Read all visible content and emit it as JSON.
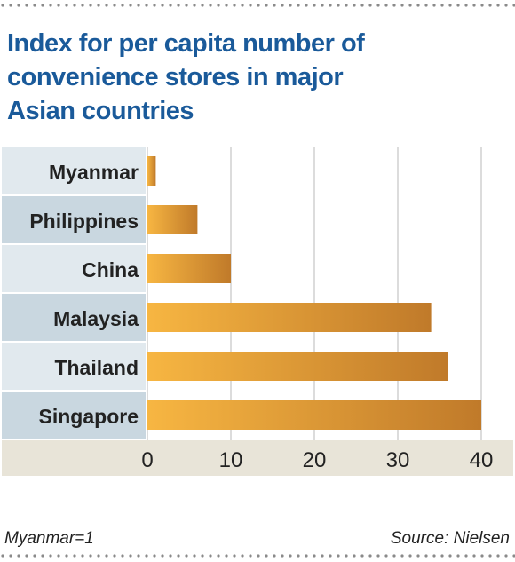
{
  "title_lines": [
    "Index for per capita number of",
    "convenience stores in major",
    "Asian countries"
  ],
  "footnote": "Myanmar=1",
  "source": "Source: Nielsen",
  "colors": {
    "title": "#1a5a9a",
    "bar_start": "#f7b642",
    "bar_end": "#c07a2a",
    "row_light": "#e1e9ee",
    "row_dark": "#c9d7e0",
    "axis_band": "#e8e4d8",
    "gridline": "#b9b9b9"
  },
  "chart_data": {
    "type": "bar",
    "orientation": "horizontal",
    "categories": [
      "Myanmar",
      "Philippines",
      "China",
      "Malaysia",
      "Thailand",
      "Singapore"
    ],
    "values": [
      1,
      6,
      10,
      34,
      36,
      40
    ],
    "xlim": [
      0,
      42
    ],
    "xticks": [
      0,
      10,
      20,
      30,
      40
    ],
    "grid": true
  }
}
